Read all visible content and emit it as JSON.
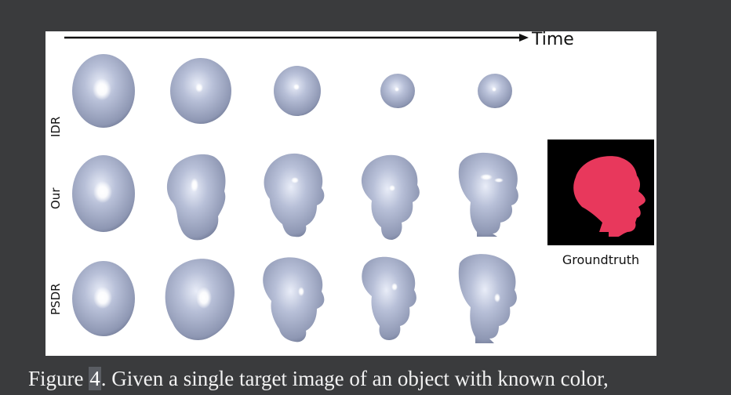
{
  "figure": {
    "time_label": "Time",
    "row_labels": [
      "IDR",
      "Our",
      "PSDR"
    ],
    "groundtruth_label": "Groundtruth",
    "colors": {
      "mesh": "#a9b2cc",
      "mesh_dark": "#6f7894",
      "highlight": "#ffffff",
      "silhouette": "#e8385c",
      "groundtruth_bg": "#000000"
    }
  },
  "caption": {
    "prefix": "Figure ",
    "number": "4",
    "text": ". Given a single target image of an object with known color,"
  }
}
